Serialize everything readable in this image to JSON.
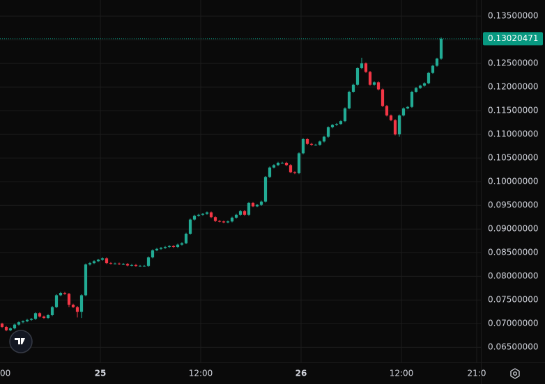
{
  "chart_data": {
    "type": "candlestick",
    "up_color": "#22ab94",
    "down_color": "#f23645",
    "grid": true,
    "last_price": 0.13020471,
    "last_price_color": "#089981",
    "ylim": [
      0.0618,
      0.1384
    ],
    "yticks": [
      {
        "value": 0.135,
        "label": "0.13500000"
      },
      {
        "value": 0.13,
        "label": "0.13000000"
      },
      {
        "value": 0.125,
        "label": "0.12500000"
      },
      {
        "value": 0.12,
        "label": "0.12000000"
      },
      {
        "value": 0.115,
        "label": "0.11500000"
      },
      {
        "value": 0.11,
        "label": "0.11000000"
      },
      {
        "value": 0.105,
        "label": "0.10500000"
      },
      {
        "value": 0.1,
        "label": "0.10000000"
      },
      {
        "value": 0.095,
        "label": "0.09500000"
      },
      {
        "value": 0.09,
        "label": "0.09000000"
      },
      {
        "value": 0.085,
        "label": "0.08500000"
      },
      {
        "value": 0.08,
        "label": "0.08000000"
      },
      {
        "value": 0.075,
        "label": "0.07500000"
      },
      {
        "value": 0.07,
        "label": "0.07000000"
      },
      {
        "value": 0.065,
        "label": "0.06500000"
      }
    ],
    "xlim": [
      0,
      115
    ],
    "xticks": [
      {
        "value": 0,
        "label": "00"
      },
      {
        "value": 24,
        "label": "25"
      },
      {
        "value": 48,
        "label": "12:00"
      },
      {
        "value": 72,
        "label": "26"
      },
      {
        "value": 96,
        "label": "12:00"
      },
      {
        "value": 114,
        "label": "21:0"
      }
    ],
    "open": [
      0.07,
      0.0693,
      0.0686,
      0.069,
      0.0698,
      0.0703,
      0.0705,
      0.0708,
      0.071,
      0.0722,
      0.0715,
      0.0712,
      0.0718,
      0.0735,
      0.076,
      0.0765,
      0.0763,
      0.074,
      0.0735,
      0.0725,
      0.076,
      0.0825,
      0.0828,
      0.0832,
      0.0835,
      0.0838,
      0.0828,
      0.0827,
      0.0827,
      0.0826,
      0.0826,
      0.0823,
      0.0824,
      0.0822,
      0.0822,
      0.0822,
      0.084,
      0.0855,
      0.0858,
      0.086,
      0.0862,
      0.0864,
      0.0862,
      0.0867,
      0.087,
      0.089,
      0.092,
      0.0928,
      0.093,
      0.0932,
      0.0935,
      0.0925,
      0.0917,
      0.0916,
      0.0914,
      0.0916,
      0.0924,
      0.093,
      0.0938,
      0.093,
      0.0955,
      0.0948,
      0.0951,
      0.0958,
      0.101,
      0.103,
      0.1035,
      0.104,
      0.104,
      0.1035,
      0.102,
      0.1018,
      0.106,
      0.109,
      0.108,
      0.1078,
      0.1078,
      0.1085,
      0.1095,
      0.1115,
      0.112,
      0.1122,
      0.1128,
      0.1155,
      0.119,
      0.1205,
      0.124,
      0.125,
      0.1232,
      0.1205,
      0.121,
      0.1195,
      0.116,
      0.114,
      0.113,
      0.11,
      0.114,
      0.1155,
      0.1158,
      0.119,
      0.1198,
      0.1203,
      0.1208,
      0.123,
      0.1245,
      0.126
    ],
    "high": [
      0.0702,
      0.0695,
      0.0692,
      0.07,
      0.0705,
      0.0707,
      0.071,
      0.0712,
      0.0724,
      0.0724,
      0.0717,
      0.072,
      0.0737,
      0.0762,
      0.0767,
      0.0767,
      0.0765,
      0.0742,
      0.0737,
      0.0762,
      0.0827,
      0.083,
      0.0834,
      0.0837,
      0.084,
      0.084,
      0.083,
      0.0829,
      0.0829,
      0.0828,
      0.0828,
      0.0826,
      0.0826,
      0.0824,
      0.0824,
      0.0842,
      0.0857,
      0.086,
      0.0862,
      0.0864,
      0.0866,
      0.0866,
      0.0869,
      0.0872,
      0.0892,
      0.0922,
      0.093,
      0.0932,
      0.0934,
      0.0937,
      0.0937,
      0.0927,
      0.0919,
      0.0918,
      0.0918,
      0.0926,
      0.0932,
      0.094,
      0.094,
      0.0957,
      0.0957,
      0.0953,
      0.096,
      0.1012,
      0.1032,
      0.1037,
      0.1042,
      0.1042,
      0.1042,
      0.1037,
      0.1022,
      0.1062,
      0.1092,
      0.1092,
      0.1082,
      0.108,
      0.1087,
      0.1097,
      0.1117,
      0.1122,
      0.1124,
      0.113,
      0.1157,
      0.1192,
      0.1207,
      0.1242,
      0.1262,
      0.1252,
      0.1234,
      0.1212,
      0.1212,
      0.1197,
      0.1162,
      0.1142,
      0.1132,
      0.1142,
      0.1157,
      0.116,
      0.1192,
      0.12,
      0.1205,
      0.121,
      0.1232,
      0.1247,
      0.1262,
      0.1305
    ],
    "low": [
      0.0691,
      0.0684,
      0.0684,
      0.0688,
      0.0696,
      0.0701,
      0.0703,
      0.0706,
      0.0708,
      0.0713,
      0.071,
      0.071,
      0.0716,
      0.0733,
      0.0758,
      0.0761,
      0.0735,
      0.0733,
      0.0713,
      0.0712,
      0.0758,
      0.0823,
      0.0826,
      0.083,
      0.0833,
      0.0826,
      0.0825,
      0.0825,
      0.0824,
      0.0824,
      0.0821,
      0.0821,
      0.082,
      0.082,
      0.082,
      0.082,
      0.0838,
      0.0853,
      0.0856,
      0.0858,
      0.086,
      0.086,
      0.086,
      0.0865,
      0.0868,
      0.0888,
      0.0918,
      0.0926,
      0.0928,
      0.093,
      0.0923,
      0.0915,
      0.0914,
      0.0912,
      0.0912,
      0.0914,
      0.0922,
      0.0928,
      0.0928,
      0.0928,
      0.0946,
      0.0946,
      0.0949,
      0.0956,
      0.1008,
      0.1028,
      0.1033,
      0.1038,
      0.1033,
      0.1018,
      0.1016,
      0.1016,
      0.1058,
      0.1078,
      0.1076,
      0.1076,
      0.1076,
      0.1083,
      0.1093,
      0.1113,
      0.1118,
      0.112,
      0.1126,
      0.1153,
      0.1188,
      0.1203,
      0.1238,
      0.123,
      0.1203,
      0.1203,
      0.1193,
      0.1158,
      0.1138,
      0.1128,
      0.1098,
      0.1095,
      0.1138,
      0.1153,
      0.1156,
      0.1188,
      0.1196,
      0.1201,
      0.1206,
      0.1228,
      0.1243,
      0.1258
    ],
    "close": [
      0.0693,
      0.0686,
      0.069,
      0.0698,
      0.0703,
      0.0705,
      0.0708,
      0.071,
      0.0722,
      0.0715,
      0.0712,
      0.0718,
      0.0735,
      0.076,
      0.0765,
      0.0763,
      0.074,
      0.0735,
      0.0725,
      0.076,
      0.0825,
      0.0828,
      0.0832,
      0.0835,
      0.0838,
      0.0828,
      0.0827,
      0.0827,
      0.0826,
      0.0826,
      0.0823,
      0.0824,
      0.0822,
      0.0822,
      0.0822,
      0.084,
      0.0855,
      0.0858,
      0.086,
      0.0862,
      0.0864,
      0.0862,
      0.0867,
      0.087,
      0.089,
      0.092,
      0.0928,
      0.093,
      0.0932,
      0.0935,
      0.0925,
      0.0917,
      0.0916,
      0.0914,
      0.0916,
      0.0924,
      0.093,
      0.0938,
      0.093,
      0.0955,
      0.0948,
      0.0951,
      0.0958,
      0.101,
      0.103,
      0.1035,
      0.104,
      0.104,
      0.1035,
      0.102,
      0.1018,
      0.106,
      0.109,
      0.108,
      0.1078,
      0.1078,
      0.1085,
      0.1095,
      0.1115,
      0.112,
      0.1122,
      0.1128,
      0.1155,
      0.119,
      0.1205,
      0.124,
      0.125,
      0.1232,
      0.1205,
      0.121,
      0.1195,
      0.116,
      0.114,
      0.113,
      0.11,
      0.114,
      0.1155,
      0.1158,
      0.119,
      0.1198,
      0.1203,
      0.1208,
      0.123,
      0.1245,
      0.126,
      0.13020471
    ]
  }
}
